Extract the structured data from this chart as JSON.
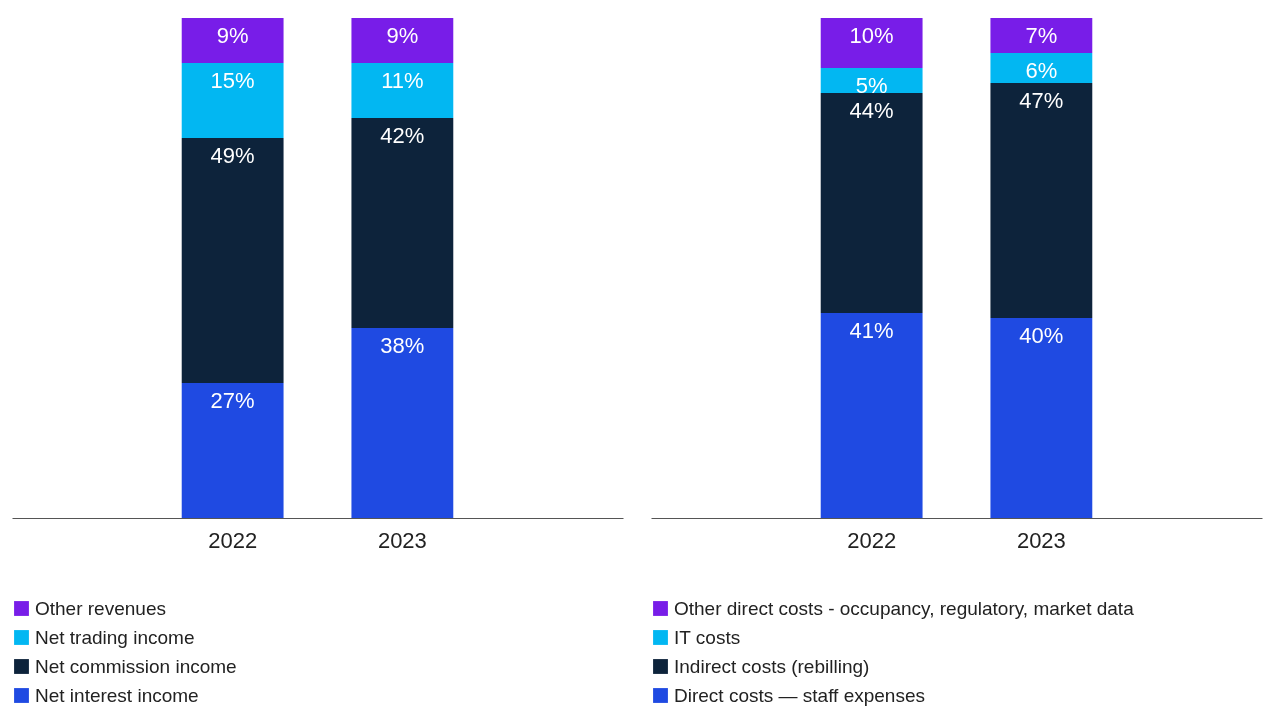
{
  "chart_data": [
    {
      "type": "bar",
      "stacked": true,
      "legend": "bottom",
      "categories": [
        "2022",
        "2023"
      ],
      "series": [
        {
          "name": "Net interest income",
          "color": "#1f4ae2",
          "values": [
            27,
            38
          ],
          "value_labels": [
            "27%",
            "38%"
          ]
        },
        {
          "name": "Net commission income",
          "color": "#0d233b",
          "values": [
            49,
            42
          ],
          "value_labels": [
            "49%",
            "42%"
          ]
        },
        {
          "name": "Net trading income",
          "color": "#02b7f2",
          "values": [
            15,
            11
          ],
          "value_labels": [
            "15%",
            "11%"
          ]
        },
        {
          "name": "Other revenues",
          "color": "#781de8",
          "values": [
            9,
            9
          ],
          "value_labels": [
            "9%",
            "9%"
          ]
        }
      ]
    },
    {
      "type": "bar",
      "stacked": true,
      "legend": "bottom",
      "categories": [
        "2022",
        "2023"
      ],
      "series": [
        {
          "name": "Direct costs — staff expenses",
          "color": "#1f4ae2",
          "values": [
            41,
            40
          ],
          "value_labels": [
            "41%",
            "40%"
          ]
        },
        {
          "name": "Indirect costs (rebilling)",
          "color": "#0d233b",
          "values": [
            44,
            47
          ],
          "value_labels": [
            "44%",
            "47%"
          ]
        },
        {
          "name": "IT costs",
          "color": "#02b7f2",
          "values": [
            5,
            6
          ],
          "value_labels": [
            "5%",
            "6%"
          ]
        },
        {
          "name": "Other direct costs - occupancy, regulatory, market data",
          "color": "#781de8",
          "values": [
            10,
            7
          ],
          "value_labels": [
            "10%",
            "7%"
          ]
        }
      ]
    }
  ]
}
